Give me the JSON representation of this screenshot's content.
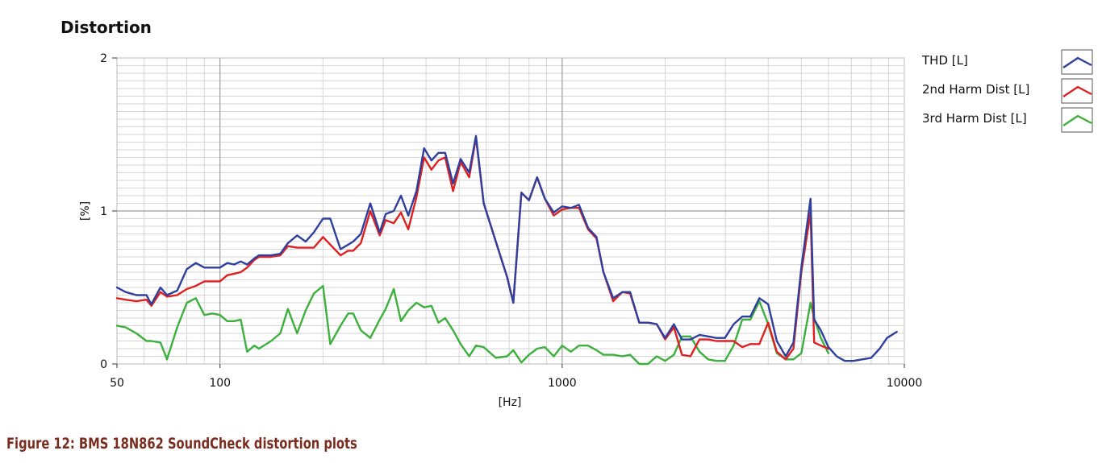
{
  "caption": "Figure 12: BMS 18N862 SoundCheck distortion plots",
  "chart_data": {
    "type": "line",
    "title": "Distortion",
    "xlabel": "[Hz]",
    "ylabel": "[%]",
    "x_scale": "log",
    "xlim": [
      50,
      10000
    ],
    "ylim": [
      0,
      2
    ],
    "grid": true,
    "legend_position": "right",
    "x_ticks": [
      {
        "v": 50,
        "label": "50"
      },
      {
        "v": 100,
        "label": "100"
      },
      {
        "v": 1000,
        "label": "1000"
      },
      {
        "v": 10000,
        "label": "10000"
      }
    ],
    "y_ticks": [
      {
        "v": 0,
        "label": "0"
      },
      {
        "v": 1,
        "label": "1"
      },
      {
        "v": 2,
        "label": "2"
      }
    ],
    "series": [
      {
        "name": "THD [L]",
        "color": "#2e3f9e",
        "points": [
          [
            50,
            0.5
          ],
          [
            53,
            0.47
          ],
          [
            57,
            0.45
          ],
          [
            61,
            0.45
          ],
          [
            63,
            0.39
          ],
          [
            67,
            0.5
          ],
          [
            70,
            0.45
          ],
          [
            75,
            0.48
          ],
          [
            80,
            0.62
          ],
          [
            85,
            0.66
          ],
          [
            90,
            0.63
          ],
          [
            100,
            0.63
          ],
          [
            105,
            0.66
          ],
          [
            110,
            0.65
          ],
          [
            115,
            0.67
          ],
          [
            120,
            0.65
          ],
          [
            126,
            0.69
          ],
          [
            130,
            0.71
          ],
          [
            141,
            0.71
          ],
          [
            150,
            0.72
          ],
          [
            158,
            0.79
          ],
          [
            168,
            0.84
          ],
          [
            178,
            0.8
          ],
          [
            188,
            0.86
          ],
          [
            200,
            0.95
          ],
          [
            210,
            0.95
          ],
          [
            225,
            0.75
          ],
          [
            237,
            0.78
          ],
          [
            245,
            0.8
          ],
          [
            258,
            0.85
          ],
          [
            275,
            1.05
          ],
          [
            293,
            0.86
          ],
          [
            305,
            0.98
          ],
          [
            322,
            1.0
          ],
          [
            338,
            1.1
          ],
          [
            355,
            0.97
          ],
          [
            375,
            1.13
          ],
          [
            395,
            1.41
          ],
          [
            415,
            1.33
          ],
          [
            435,
            1.38
          ],
          [
            455,
            1.38
          ],
          [
            480,
            1.18
          ],
          [
            505,
            1.34
          ],
          [
            535,
            1.25
          ],
          [
            560,
            1.49
          ],
          [
            590,
            1.05
          ],
          [
            640,
            0.8
          ],
          [
            690,
            0.57
          ],
          [
            720,
            0.4
          ],
          [
            760,
            1.12
          ],
          [
            800,
            1.07
          ],
          [
            845,
            1.22
          ],
          [
            890,
            1.08
          ],
          [
            945,
            0.99
          ],
          [
            1000,
            1.03
          ],
          [
            1060,
            1.02
          ],
          [
            1120,
            1.04
          ],
          [
            1190,
            0.89
          ],
          [
            1260,
            0.83
          ],
          [
            1320,
            0.6
          ],
          [
            1410,
            0.43
          ],
          [
            1500,
            0.47
          ],
          [
            1580,
            0.47
          ],
          [
            1680,
            0.27
          ],
          [
            1780,
            0.27
          ],
          [
            1890,
            0.26
          ],
          [
            2000,
            0.17
          ],
          [
            2120,
            0.26
          ],
          [
            2240,
            0.16
          ],
          [
            2370,
            0.16
          ],
          [
            2520,
            0.19
          ],
          [
            2670,
            0.18
          ],
          [
            2820,
            0.17
          ],
          [
            2990,
            0.17
          ],
          [
            3170,
            0.26
          ],
          [
            3360,
            0.31
          ],
          [
            3550,
            0.31
          ],
          [
            3770,
            0.43
          ],
          [
            4000,
            0.39
          ],
          [
            4240,
            0.15
          ],
          [
            4500,
            0.05
          ],
          [
            4740,
            0.14
          ],
          [
            5000,
            0.63
          ],
          [
            5320,
            1.08
          ],
          [
            5450,
            0.29
          ],
          [
            5700,
            0.22
          ],
          [
            6000,
            0.11
          ],
          [
            6340,
            0.05
          ],
          [
            6700,
            0.02
          ],
          [
            7100,
            0.02
          ],
          [
            7530,
            0.03
          ],
          [
            8000,
            0.04
          ],
          [
            8470,
            0.1
          ],
          [
            8900,
            0.17
          ],
          [
            9500,
            0.21
          ]
        ]
      },
      {
        "name": "2nd Harm Dist [L]",
        "color": "#e02020",
        "points": [
          [
            50,
            0.43
          ],
          [
            53,
            0.42
          ],
          [
            57,
            0.41
          ],
          [
            61,
            0.42
          ],
          [
            63,
            0.38
          ],
          [
            67,
            0.47
          ],
          [
            70,
            0.44
          ],
          [
            75,
            0.45
          ],
          [
            80,
            0.49
          ],
          [
            85,
            0.51
          ],
          [
            90,
            0.54
          ],
          [
            100,
            0.54
          ],
          [
            105,
            0.58
          ],
          [
            110,
            0.59
          ],
          [
            115,
            0.6
          ],
          [
            120,
            0.63
          ],
          [
            126,
            0.68
          ],
          [
            130,
            0.7
          ],
          [
            141,
            0.7
          ],
          [
            150,
            0.71
          ],
          [
            158,
            0.77
          ],
          [
            168,
            0.76
          ],
          [
            178,
            0.76
          ],
          [
            188,
            0.76
          ],
          [
            200,
            0.83
          ],
          [
            210,
            0.78
          ],
          [
            225,
            0.71
          ],
          [
            237,
            0.74
          ],
          [
            245,
            0.74
          ],
          [
            258,
            0.79
          ],
          [
            275,
            1.0
          ],
          [
            293,
            0.84
          ],
          [
            305,
            0.94
          ],
          [
            322,
            0.92
          ],
          [
            338,
            0.99
          ],
          [
            355,
            0.88
          ],
          [
            375,
            1.09
          ],
          [
            395,
            1.35
          ],
          [
            415,
            1.27
          ],
          [
            435,
            1.33
          ],
          [
            455,
            1.35
          ],
          [
            480,
            1.13
          ],
          [
            505,
            1.32
          ],
          [
            535,
            1.22
          ],
          [
            560,
            1.48
          ],
          [
            590,
            1.05
          ],
          [
            640,
            0.8
          ],
          [
            690,
            0.57
          ],
          [
            720,
            0.4
          ],
          [
            760,
            1.12
          ],
          [
            800,
            1.07
          ],
          [
            845,
            1.22
          ],
          [
            890,
            1.08
          ],
          [
            945,
            0.97
          ],
          [
            1000,
            1.01
          ],
          [
            1060,
            1.02
          ],
          [
            1120,
            1.02
          ],
          [
            1190,
            0.88
          ],
          [
            1260,
            0.82
          ],
          [
            1320,
            0.6
          ],
          [
            1410,
            0.41
          ],
          [
            1500,
            0.47
          ],
          [
            1580,
            0.46
          ],
          [
            1680,
            0.27
          ],
          [
            1780,
            0.27
          ],
          [
            1890,
            0.26
          ],
          [
            2000,
            0.16
          ],
          [
            2120,
            0.24
          ],
          [
            2240,
            0.06
          ],
          [
            2370,
            0.05
          ],
          [
            2520,
            0.16
          ],
          [
            2670,
            0.16
          ],
          [
            2820,
            0.15
          ],
          [
            2990,
            0.15
          ],
          [
            3170,
            0.15
          ],
          [
            3360,
            0.11
          ],
          [
            3550,
            0.13
          ],
          [
            3770,
            0.13
          ],
          [
            4000,
            0.27
          ],
          [
            4240,
            0.08
          ],
          [
            4500,
            0.03
          ],
          [
            4740,
            0.1
          ],
          [
            5000,
            0.6
          ],
          [
            5320,
            0.99
          ],
          [
            5450,
            0.14
          ],
          [
            5700,
            0.12
          ],
          [
            6000,
            0.1
          ]
        ]
      },
      {
        "name": "3rd Harm Dist [L]",
        "color": "#3cb03c",
        "points": [
          [
            50,
            0.25
          ],
          [
            53,
            0.24
          ],
          [
            57,
            0.2
          ],
          [
            61,
            0.15
          ],
          [
            63,
            0.15
          ],
          [
            67,
            0.14
          ],
          [
            70,
            0.03
          ],
          [
            75,
            0.24
          ],
          [
            80,
            0.4
          ],
          [
            85,
            0.43
          ],
          [
            90,
            0.32
          ],
          [
            95,
            0.33
          ],
          [
            100,
            0.32
          ],
          [
            105,
            0.28
          ],
          [
            110,
            0.28
          ],
          [
            115,
            0.29
          ],
          [
            120,
            0.08
          ],
          [
            126,
            0.12
          ],
          [
            130,
            0.1
          ],
          [
            141,
            0.15
          ],
          [
            150,
            0.2
          ],
          [
            158,
            0.36
          ],
          [
            168,
            0.2
          ],
          [
            178,
            0.35
          ],
          [
            188,
            0.46
          ],
          [
            200,
            0.51
          ],
          [
            210,
            0.13
          ],
          [
            225,
            0.25
          ],
          [
            237,
            0.33
          ],
          [
            245,
            0.33
          ],
          [
            258,
            0.22
          ],
          [
            275,
            0.17
          ],
          [
            293,
            0.29
          ],
          [
            305,
            0.36
          ],
          [
            322,
            0.49
          ],
          [
            338,
            0.28
          ],
          [
            355,
            0.35
          ],
          [
            375,
            0.4
          ],
          [
            395,
            0.37
          ],
          [
            415,
            0.38
          ],
          [
            435,
            0.27
          ],
          [
            455,
            0.3
          ],
          [
            480,
            0.22
          ],
          [
            505,
            0.13
          ],
          [
            535,
            0.05
          ],
          [
            560,
            0.12
          ],
          [
            590,
            0.11
          ],
          [
            640,
            0.04
          ],
          [
            690,
            0.05
          ],
          [
            720,
            0.09
          ],
          [
            760,
            0.01
          ],
          [
            800,
            0.06
          ],
          [
            845,
            0.1
          ],
          [
            890,
            0.11
          ],
          [
            945,
            0.05
          ],
          [
            1000,
            0.12
          ],
          [
            1060,
            0.08
          ],
          [
            1120,
            0.12
          ],
          [
            1190,
            0.12
          ],
          [
            1260,
            0.09
          ],
          [
            1320,
            0.06
          ],
          [
            1410,
            0.06
          ],
          [
            1500,
            0.05
          ],
          [
            1580,
            0.06
          ],
          [
            1680,
            0.0
          ],
          [
            1780,
            0.0
          ],
          [
            1890,
            0.05
          ],
          [
            2000,
            0.02
          ],
          [
            2120,
            0.06
          ],
          [
            2240,
            0.18
          ],
          [
            2370,
            0.18
          ],
          [
            2520,
            0.08
          ],
          [
            2670,
            0.03
          ],
          [
            2820,
            0.02
          ],
          [
            2990,
            0.02
          ],
          [
            3170,
            0.12
          ],
          [
            3360,
            0.29
          ],
          [
            3550,
            0.29
          ],
          [
            3770,
            0.41
          ],
          [
            4000,
            0.26
          ],
          [
            4240,
            0.07
          ],
          [
            4500,
            0.03
          ],
          [
            4740,
            0.03
          ],
          [
            5000,
            0.07
          ],
          [
            5320,
            0.4
          ],
          [
            5450,
            0.3
          ],
          [
            5700,
            0.17
          ],
          [
            6000,
            0.07
          ]
        ]
      }
    ]
  }
}
